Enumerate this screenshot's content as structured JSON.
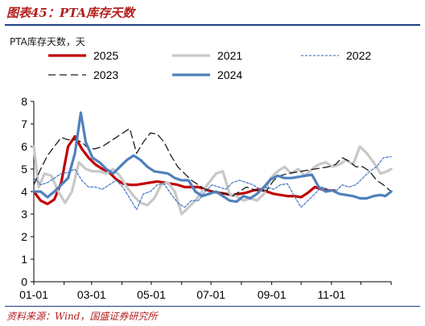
{
  "figure": {
    "title": "图表45：PTA库存天数",
    "source": "资料来源：Wind，国盛证券研究所"
  },
  "chart_data": {
    "type": "line",
    "unit_label": "PTA库存天数，天",
    "xlabel": "",
    "ylabel": "",
    "x_ticks": [
      "01-01",
      "03-01",
      "05-01",
      "07-01",
      "09-01",
      "11-01"
    ],
    "x_tick_pos": [
      1,
      60,
      121,
      182,
      244,
      305
    ],
    "x_domain": [
      1,
      366
    ],
    "ylim": [
      0,
      8
    ],
    "y_ticks": [
      0,
      1,
      2,
      3,
      4,
      5,
      6,
      7,
      8
    ],
    "grid": false,
    "legend_position": "top",
    "series": [
      {
        "name": "2025",
        "color": "#c00000",
        "dash": "solid",
        "width": 3.2,
        "points": [
          [
            1,
            4.0
          ],
          [
            8,
            3.6
          ],
          [
            15,
            3.45
          ],
          [
            22,
            3.65
          ],
          [
            29,
            4.4
          ],
          [
            36,
            6.0
          ],
          [
            43,
            6.45
          ],
          [
            50,
            5.9
          ],
          [
            57,
            5.5
          ],
          [
            64,
            5.2
          ],
          [
            71,
            5.0
          ],
          [
            78,
            4.85
          ],
          [
            85,
            4.55
          ],
          [
            92,
            4.35
          ],
          [
            99,
            4.3
          ],
          [
            106,
            4.3
          ],
          [
            113,
            4.35
          ],
          [
            120,
            4.4
          ],
          [
            127,
            4.45
          ],
          [
            134,
            4.4
          ],
          [
            141,
            4.35
          ],
          [
            148,
            4.3
          ],
          [
            155,
            4.2
          ],
          [
            162,
            4.2
          ],
          [
            169,
            4.2
          ],
          [
            176,
            4.1
          ],
          [
            183,
            4.0
          ],
          [
            190,
            3.95
          ],
          [
            197,
            3.9
          ],
          [
            204,
            3.85
          ],
          [
            211,
            3.9
          ],
          [
            218,
            3.95
          ],
          [
            225,
            4.05
          ],
          [
            232,
            4.1
          ],
          [
            239,
            4.0
          ],
          [
            246,
            3.9
          ],
          [
            253,
            3.85
          ],
          [
            260,
            3.8
          ],
          [
            267,
            3.8
          ],
          [
            274,
            3.75
          ],
          [
            281,
            3.95
          ],
          [
            288,
            4.2
          ],
          [
            295,
            4.1
          ],
          [
            302,
            4.05
          ],
          [
            308,
            4.05
          ]
        ]
      },
      {
        "name": "2021",
        "color": "#c8c8c8",
        "dash": "solid",
        "width": 3.2,
        "points": [
          [
            1,
            6.0
          ],
          [
            6,
            4.2
          ],
          [
            12,
            4.8
          ],
          [
            19,
            4.7
          ],
          [
            26,
            4.0
          ],
          [
            33,
            3.5
          ],
          [
            40,
            4.0
          ],
          [
            47,
            5.3
          ],
          [
            54,
            5.0
          ],
          [
            61,
            4.9
          ],
          [
            68,
            4.9
          ],
          [
            75,
            4.8
          ],
          [
            82,
            5.0
          ],
          [
            89,
            4.7
          ],
          [
            96,
            4.2
          ],
          [
            103,
            3.8
          ],
          [
            110,
            3.5
          ],
          [
            117,
            3.4
          ],
          [
            124,
            3.7
          ],
          [
            131,
            4.3
          ],
          [
            138,
            4.4
          ],
          [
            145,
            4.0
          ],
          [
            152,
            3.0
          ],
          [
            159,
            3.3
          ],
          [
            166,
            3.6
          ],
          [
            173,
            4.0
          ],
          [
            180,
            4.4
          ],
          [
            187,
            4.8
          ],
          [
            194,
            4.9
          ],
          [
            201,
            3.9
          ],
          [
            208,
            3.8
          ],
          [
            215,
            3.6
          ],
          [
            222,
            3.7
          ],
          [
            229,
            3.6
          ],
          [
            236,
            3.9
          ],
          [
            243,
            4.6
          ],
          [
            250,
            4.9
          ],
          [
            257,
            5.1
          ],
          [
            264,
            4.8
          ],
          [
            271,
            5.0
          ],
          [
            278,
            4.7
          ],
          [
            285,
            5.0
          ],
          [
            292,
            5.2
          ],
          [
            299,
            5.3
          ],
          [
            306,
            5.1
          ],
          [
            313,
            5.2
          ],
          [
            320,
            5.4
          ],
          [
            327,
            5.2
          ],
          [
            334,
            6.0
          ],
          [
            341,
            5.7
          ],
          [
            348,
            5.3
          ],
          [
            355,
            4.8
          ],
          [
            362,
            4.9
          ],
          [
            366,
            5.0
          ]
        ]
      },
      {
        "name": "2022",
        "color": "#4f7fc4",
        "dash": "3,2",
        "width": 1.3,
        "points": [
          [
            1,
            4.6
          ],
          [
            8,
            4.3
          ],
          [
            15,
            4.4
          ],
          [
            22,
            4.6
          ],
          [
            29,
            4.8
          ],
          [
            36,
            4.85
          ],
          [
            43,
            5.0
          ],
          [
            50,
            4.5
          ],
          [
            57,
            4.2
          ],
          [
            64,
            4.2
          ],
          [
            71,
            4.1
          ],
          [
            78,
            4.3
          ],
          [
            85,
            4.5
          ],
          [
            92,
            4.2
          ],
          [
            99,
            3.7
          ],
          [
            106,
            3.2
          ],
          [
            113,
            3.9
          ],
          [
            120,
            4.0
          ],
          [
            127,
            4.3
          ],
          [
            134,
            4.35
          ],
          [
            141,
            3.9
          ],
          [
            148,
            3.5
          ],
          [
            155,
            3.3
          ],
          [
            162,
            3.6
          ],
          [
            169,
            3.6
          ],
          [
            176,
            4.0
          ],
          [
            183,
            4.3
          ],
          [
            190,
            4.2
          ],
          [
            197,
            4.1
          ],
          [
            204,
            4.4
          ],
          [
            211,
            4.5
          ],
          [
            218,
            4.4
          ],
          [
            225,
            4.3
          ],
          [
            232,
            4.1
          ],
          [
            239,
            4.2
          ],
          [
            246,
            4.1
          ],
          [
            253,
            4.3
          ],
          [
            260,
            4.35
          ],
          [
            267,
            3.8
          ],
          [
            274,
            3.3
          ],
          [
            281,
            3.6
          ],
          [
            288,
            3.9
          ],
          [
            295,
            4.2
          ],
          [
            302,
            4.1
          ],
          [
            309,
            4.0
          ],
          [
            316,
            4.3
          ],
          [
            323,
            4.2
          ],
          [
            330,
            4.3
          ],
          [
            337,
            4.6
          ],
          [
            344,
            4.9
          ],
          [
            351,
            5.1
          ],
          [
            358,
            5.5
          ],
          [
            366,
            5.55
          ]
        ]
      },
      {
        "name": "2023",
        "color": "#1a1a1a",
        "dash": "9,5",
        "width": 1.3,
        "points": [
          [
            1,
            4.3
          ],
          [
            8,
            5.0
          ],
          [
            15,
            5.6
          ],
          [
            22,
            6.0
          ],
          [
            29,
            6.4
          ],
          [
            36,
            6.3
          ],
          [
            43,
            6.3
          ],
          [
            50,
            6.2
          ],
          [
            57,
            5.9
          ],
          [
            64,
            5.9
          ],
          [
            71,
            6.0
          ],
          [
            78,
            6.2
          ],
          [
            85,
            6.4
          ],
          [
            92,
            6.6
          ],
          [
            99,
            6.8
          ],
          [
            106,
            5.7
          ],
          [
            113,
            6.2
          ],
          [
            120,
            6.6
          ],
          [
            127,
            6.55
          ],
          [
            134,
            6.2
          ],
          [
            141,
            5.6
          ],
          [
            148,
            5.1
          ],
          [
            155,
            4.8
          ],
          [
            162,
            4.5
          ],
          [
            169,
            4.3
          ],
          [
            176,
            4.1
          ],
          [
            183,
            4.0
          ],
          [
            190,
            4.0
          ],
          [
            197,
            3.9
          ],
          [
            204,
            3.8
          ],
          [
            211,
            4.0
          ],
          [
            218,
            4.2
          ],
          [
            225,
            4.1
          ],
          [
            232,
            4.0
          ],
          [
            239,
            4.05
          ],
          [
            246,
            4.5
          ],
          [
            253,
            4.7
          ],
          [
            260,
            4.8
          ],
          [
            267,
            4.85
          ],
          [
            274,
            4.9
          ],
          [
            281,
            4.95
          ],
          [
            288,
            5.0
          ],
          [
            295,
            5.05
          ],
          [
            302,
            5.1
          ],
          [
            309,
            5.2
          ],
          [
            316,
            5.5
          ],
          [
            323,
            5.35
          ],
          [
            330,
            5.1
          ],
          [
            337,
            5.1
          ],
          [
            344,
            4.9
          ],
          [
            351,
            4.5
          ],
          [
            358,
            4.3
          ],
          [
            366,
            4.0
          ]
        ]
      },
      {
        "name": "2024",
        "color": "#4f81bd",
        "dash": "solid",
        "width": 3.2,
        "points": [
          [
            1,
            4.0
          ],
          [
            8,
            4.0
          ],
          [
            15,
            3.75
          ],
          [
            22,
            4.0
          ],
          [
            29,
            4.3
          ],
          [
            36,
            4.6
          ],
          [
            43,
            5.7
          ],
          [
            49,
            7.5
          ],
          [
            54,
            6.2
          ],
          [
            61,
            5.5
          ],
          [
            68,
            5.3
          ],
          [
            75,
            5.0
          ],
          [
            82,
            4.8
          ],
          [
            89,
            5.1
          ],
          [
            96,
            5.4
          ],
          [
            103,
            5.6
          ],
          [
            110,
            5.4
          ],
          [
            117,
            5.1
          ],
          [
            124,
            4.9
          ],
          [
            131,
            4.85
          ],
          [
            138,
            4.8
          ],
          [
            145,
            4.6
          ],
          [
            152,
            4.5
          ],
          [
            159,
            4.5
          ],
          [
            166,
            4.0
          ],
          [
            173,
            3.8
          ],
          [
            180,
            3.9
          ],
          [
            187,
            4.0
          ],
          [
            194,
            3.8
          ],
          [
            201,
            3.6
          ],
          [
            208,
            3.55
          ],
          [
            215,
            3.8
          ],
          [
            222,
            3.7
          ],
          [
            229,
            3.9
          ],
          [
            236,
            4.2
          ],
          [
            243,
            4.55
          ],
          [
            250,
            4.7
          ],
          [
            257,
            4.6
          ],
          [
            264,
            4.6
          ],
          [
            271,
            4.65
          ],
          [
            278,
            4.7
          ],
          [
            285,
            4.75
          ],
          [
            292,
            4.2
          ],
          [
            299,
            4.0
          ],
          [
            306,
            4.05
          ],
          [
            313,
            3.9
          ],
          [
            320,
            3.85
          ],
          [
            327,
            3.8
          ],
          [
            334,
            3.7
          ],
          [
            341,
            3.7
          ],
          [
            348,
            3.8
          ],
          [
            355,
            3.85
          ],
          [
            360,
            3.8
          ],
          [
            366,
            4.0
          ]
        ]
      }
    ]
  }
}
